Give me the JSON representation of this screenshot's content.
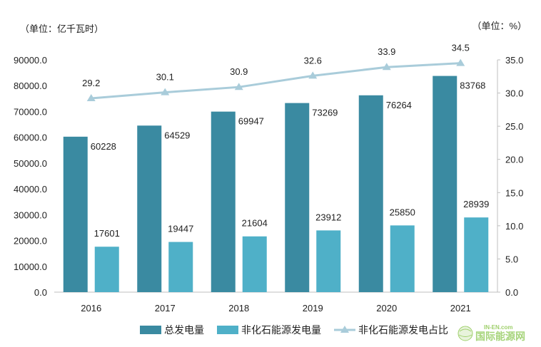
{
  "chart_data": {
    "type": "bar",
    "categories": [
      "2016",
      "2017",
      "2018",
      "2019",
      "2020",
      "2021"
    ],
    "series": [
      {
        "name": "总发电量",
        "type": "bar",
        "axis": "left",
        "color": "#3a8aa1",
        "values": [
          60228,
          64529,
          69947,
          73269,
          76264,
          83768
        ]
      },
      {
        "name": "非化石能源发电量",
        "type": "bar",
        "axis": "left",
        "color": "#4fb0c8",
        "values": [
          17601,
          19447,
          21604,
          23912,
          25850,
          28939
        ]
      },
      {
        "name": "非化石能源发电占比",
        "type": "line",
        "axis": "right",
        "color": "#a9ccda",
        "values": [
          29.2,
          30.1,
          30.9,
          32.6,
          33.9,
          34.5
        ]
      }
    ],
    "y_left": {
      "unit_label": "（单位：亿千瓦时）",
      "ticks": [
        "0.0",
        "10000.0",
        "20000.0",
        "30000.0",
        "40000.0",
        "50000.0",
        "60000.0",
        "70000.0",
        "80000.0",
        "90000.0"
      ],
      "range": [
        0,
        90000
      ]
    },
    "y_right": {
      "unit_label": "（单位：%）",
      "ticks": [
        "0.0",
        "5.0",
        "10.0",
        "15.0",
        "20.0",
        "25.0",
        "30.0",
        "35.0"
      ],
      "range": [
        0,
        35
      ]
    },
    "legend_position": "bottom",
    "grid": false
  },
  "watermark": {
    "top_text": "IN-EN.com",
    "main_text": "国际能源网",
    "color": "#7ab648"
  }
}
